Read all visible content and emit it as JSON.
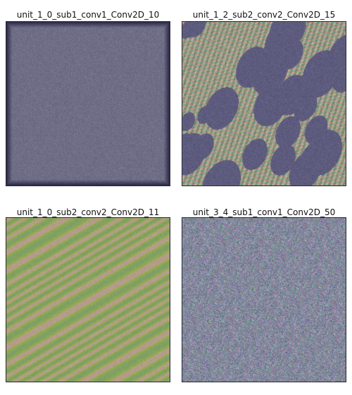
{
  "panels": [
    {
      "title": "unit_1_0_sub1_conv1_Conv2D_10",
      "pattern": "uniform-fine-grain",
      "colors": [
        "#6f6e86",
        "#7a7890",
        "#2c2a48"
      ]
    },
    {
      "title": "unit_1_2_sub2_conv2_Conv2D_15",
      "pattern": "diagonal-blotches",
      "colors": [
        "#5e5c7e",
        "#b08a8a",
        "#a4a07a",
        "#6fa38a"
      ]
    },
    {
      "title": "unit_1_0_sub2_conv2_Conv2D_11",
      "pattern": "wavy-streaks",
      "colors": [
        "#a3b246",
        "#7fa064",
        "#b59c8a",
        "#8e9a8c"
      ]
    },
    {
      "title": "unit_3_4_sub1_conv1_Conv2D_50",
      "pattern": "noisy-speckle",
      "colors": [
        "#8a7ea8",
        "#6f8aa2",
        "#9b7c9c",
        "#7ea08e"
      ]
    }
  ]
}
